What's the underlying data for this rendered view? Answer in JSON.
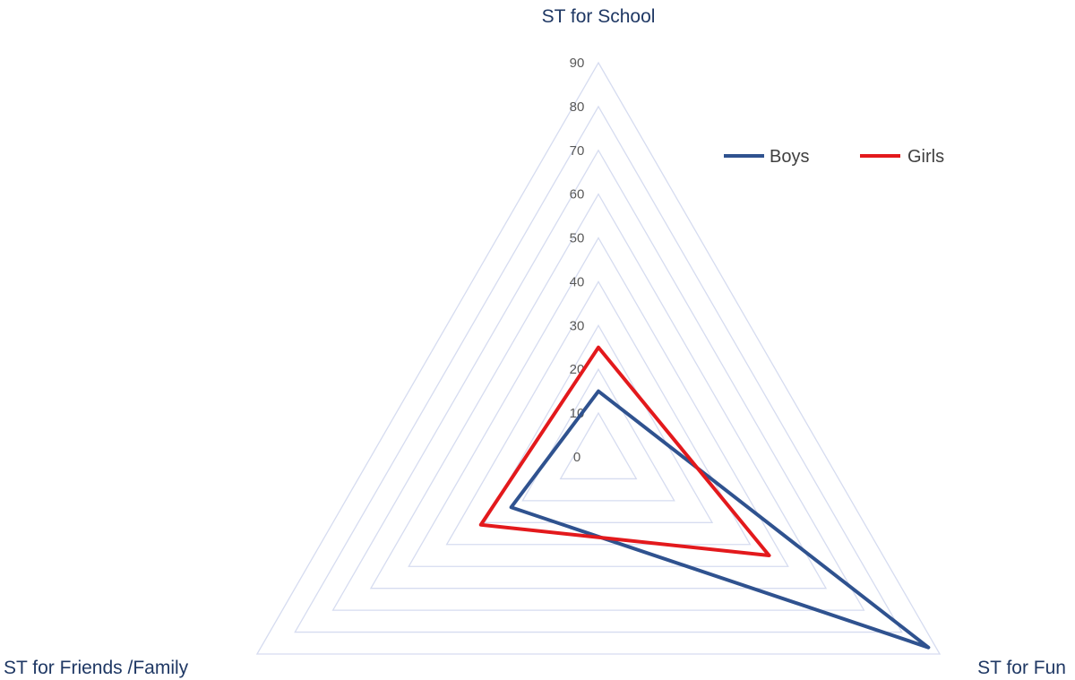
{
  "chart_data": {
    "type": "radar",
    "categories": [
      "ST for School",
      "ST for Fun",
      "ST for Friends /Family"
    ],
    "rlim": [
      0,
      90
    ],
    "ticks": [
      "0",
      "10",
      "20",
      "30",
      "40",
      "50",
      "60",
      "70",
      "80",
      "90"
    ],
    "tick_values": [
      0,
      10,
      20,
      30,
      40,
      50,
      60,
      70,
      80,
      90
    ],
    "grid": true,
    "legend": "top-right",
    "series": [
      {
        "name": "Boys",
        "values": [
          15,
          87,
          23
        ],
        "color": "#2f528f"
      },
      {
        "name": "Girls",
        "values": [
          25,
          45,
          31
        ],
        "color": "#e3191c"
      }
    ],
    "grid_color": "#d6dcf0"
  }
}
